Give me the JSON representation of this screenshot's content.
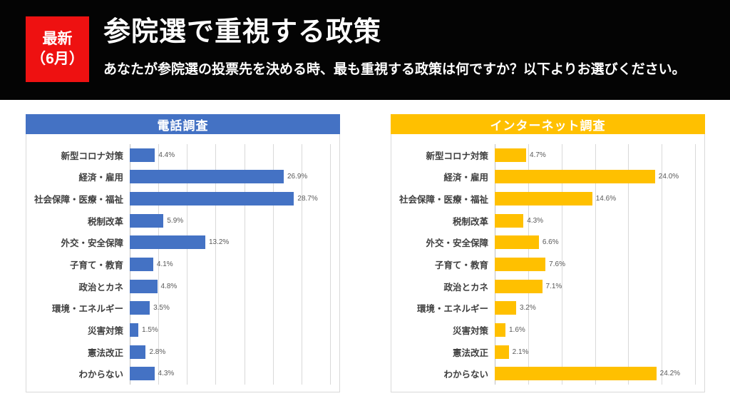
{
  "header": {
    "badge": {
      "line1": "最新",
      "line2": "（6月）",
      "bg_color": "#ee1111",
      "text_color": "#ffffff"
    },
    "title": "参院選で重視する政策",
    "subtitle": "あなたが参院選の投票先を決める時、最も重視する政策は何ですか？以下よりお選びください。",
    "bg_color": "#040404",
    "text_color": "#ffffff"
  },
  "chart_data": [
    {
      "type": "bar",
      "orientation": "horizontal",
      "title": "電話調査",
      "header_bg": "#4472c4",
      "bar_color": "#4472c4",
      "categories": [
        "新型コロナ対策",
        "経済・雇用",
        "社会保障・医療・福祉",
        "税制改革",
        "外交・安全保障",
        "子育て・教育",
        "政治とカネ",
        "環境・エネルギー",
        "災害対策",
        "憲法改正",
        "わからない"
      ],
      "values": [
        4.4,
        26.9,
        28.7,
        5.9,
        13.2,
        4.1,
        4.8,
        3.5,
        1.5,
        2.8,
        4.3
      ],
      "data_labels": [
        "4.4%",
        "26.9%",
        "28.7%",
        "5.9%",
        "13.2%",
        "4.1%",
        "4.8%",
        "3.5%",
        "1.5%",
        "2.8%",
        "4.3%"
      ],
      "xlim": [
        0,
        35
      ],
      "grid_interval": 5,
      "grid": true,
      "legend": false
    },
    {
      "type": "bar",
      "orientation": "horizontal",
      "title": "インターネット調査",
      "header_bg": "#ffc000",
      "bar_color": "#ffc000",
      "categories": [
        "新型コロナ対策",
        "経済・雇用",
        "社会保障・医療・福祉",
        "税制改革",
        "外交・安全保障",
        "子育て・教育",
        "政治とカネ",
        "環境・エネルギー",
        "災害対策",
        "憲法改正",
        "わからない"
      ],
      "values": [
        4.7,
        24.0,
        14.6,
        4.3,
        6.6,
        7.6,
        7.1,
        3.2,
        1.6,
        2.1,
        24.2
      ],
      "data_labels": [
        "4.7%",
        "24.0%",
        "14.6%",
        "4.3%",
        "6.6%",
        "7.6%",
        "7.1%",
        "3.2%",
        "1.6%",
        "2.1%",
        "24.2%"
      ],
      "xlim": [
        0,
        30
      ],
      "grid_interval": 5,
      "grid": true,
      "legend": false
    }
  ],
  "styles": {
    "grid_color": "#d9d9d9",
    "panel_border": "#d9d9d9",
    "category_label_color": "#3f3f3f",
    "value_label_color": "#595959",
    "page_bg": "#ffffff"
  }
}
